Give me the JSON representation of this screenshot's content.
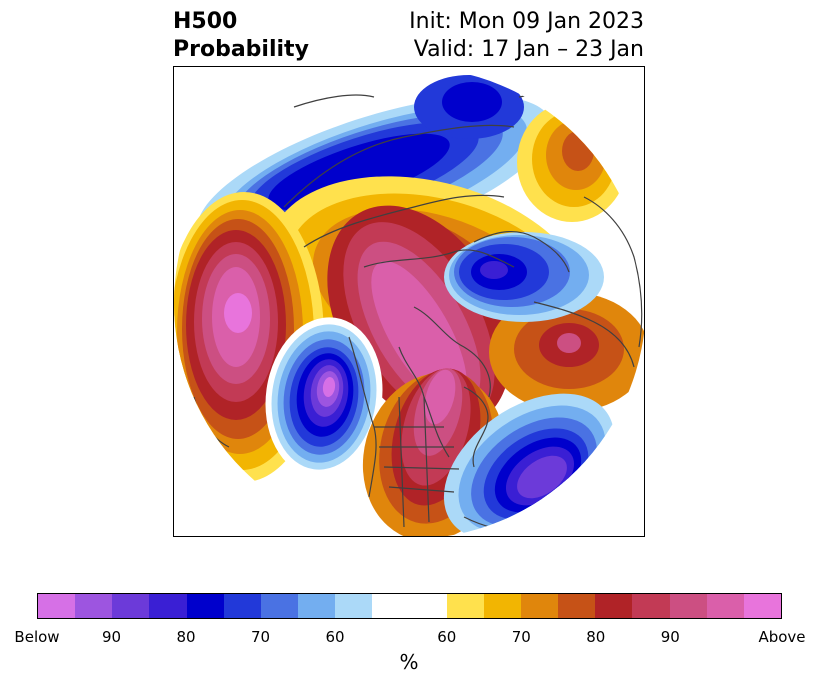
{
  "title": {
    "line1": "H500",
    "line2": "Probability",
    "init": "Init: Mon 09 Jan 2023",
    "valid": "Valid: 17 Jan – 23 Jan"
  },
  "map": {
    "projection": "polar stereographic, north hemisphere",
    "features": [
      "below-normal-anomaly",
      "above-normal-anomaly",
      "coastlines",
      "borders"
    ]
  },
  "colorbar": {
    "unit": "%",
    "colors": [
      "#d670e6",
      "#9d55e0",
      "#6c3ad9",
      "#3a1fd4",
      "#0000cc",
      "#2239d9",
      "#4a72e3",
      "#73aef0",
      "#abd9f8",
      "#ffffff",
      "#ffe14d",
      "#f2b502",
      "#e0860c",
      "#c65217",
      "#b02327",
      "#c23a55",
      "#cc4f82",
      "#da5faa",
      "#e874dc"
    ],
    "tick_labels": [
      "Below",
      "90",
      "80",
      "70",
      "60",
      "60",
      "70",
      "80",
      "90",
      "Above"
    ]
  }
}
